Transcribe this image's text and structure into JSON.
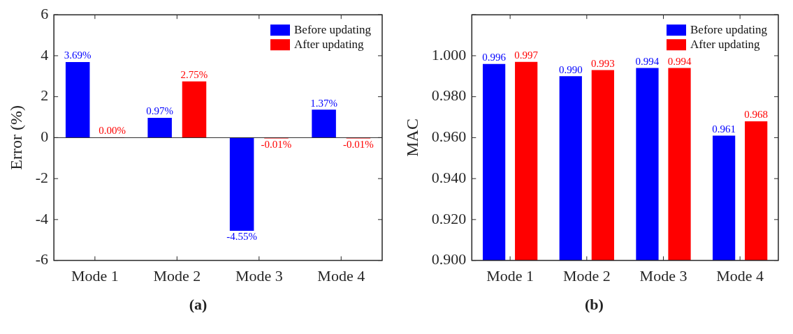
{
  "chart_data": [
    {
      "type": "bar",
      "categories": [
        "Mode 1",
        "Mode 2",
        "Mode 3",
        "Mode 4"
      ],
      "ylabel": "Error (%)",
      "ylim": [
        -6,
        6
      ],
      "yticks": [
        -6,
        -4,
        -2,
        0,
        2,
        4,
        6
      ],
      "grid": false,
      "legend": "top right",
      "annotations": [
        "(a)"
      ],
      "ref_lines": [
        {
          "axis": "y",
          "value": 0
        }
      ],
      "series": [
        {
          "name": "Before updating",
          "color": "#0000ff",
          "values": [
            3.69,
            0.97,
            -4.55,
            1.37
          ],
          "value_labels": [
            "3.69%",
            "0.97%",
            "-4.55%",
            "1.37%"
          ]
        },
        {
          "name": "After updating",
          "color": "#ff0000",
          "values": [
            0.0,
            2.75,
            -0.01,
            -0.01
          ],
          "value_labels": [
            "0.00%",
            "2.75%",
            "-0.01%",
            "-0.01%"
          ]
        }
      ]
    },
    {
      "type": "bar",
      "categories": [
        "Mode 1",
        "Mode 2",
        "Mode 3",
        "Mode 4"
      ],
      "ylabel": "MAC",
      "ylim": [
        0.9,
        1.02
      ],
      "yticks": [
        {
          "value": 0.9,
          "label": "0.900"
        },
        {
          "value": 0.92,
          "label": "0.920"
        },
        {
          "value": 0.94,
          "label": "0.940"
        },
        {
          "value": 0.96,
          "label": "0.960"
        },
        {
          "value": 0.98,
          "label": "0.980"
        },
        {
          "value": 1.0,
          "label": "1.000"
        },
        {
          "value": 1.02,
          "label": null
        }
      ],
      "grid": false,
      "legend": "top right",
      "annotations": [
        "(b)"
      ],
      "series": [
        {
          "name": "Before updating",
          "color": "#0000ff",
          "values": [
            0.996,
            0.99,
            0.994,
            0.961
          ],
          "value_labels": [
            "0.996",
            "0.990",
            "0.994",
            "0.961"
          ]
        },
        {
          "name": "After updating",
          "color": "#ff0000",
          "values": [
            0.997,
            0.993,
            0.994,
            0.968
          ],
          "value_labels": [
            "0.997",
            "0.993",
            "0.994",
            "0.968"
          ]
        }
      ]
    }
  ]
}
